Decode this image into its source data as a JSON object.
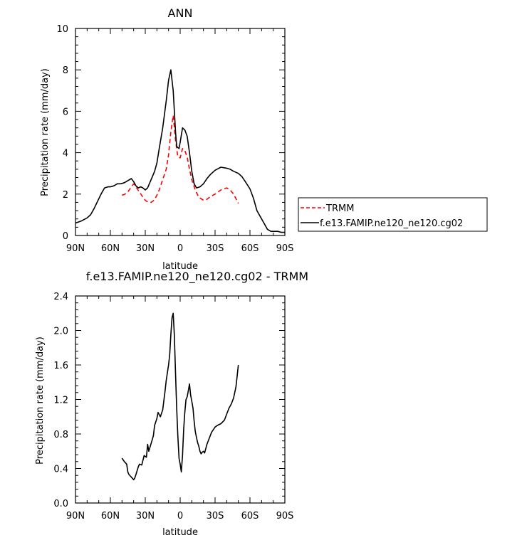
{
  "chart_data": [
    {
      "type": "line",
      "title": "ANN",
      "xlabel": "latitude",
      "ylabel": "Precipitation rate (mm/day)",
      "xlim": [
        90,
        -90
      ],
      "ylim": [
        0,
        10
      ],
      "x_ticks": [
        90,
        60,
        30,
        0,
        -30,
        -60,
        -90
      ],
      "x_tick_labels": [
        "90N",
        "60N",
        "30N",
        "0",
        "30S",
        "60S",
        "90S"
      ],
      "y_ticks": [
        0,
        2,
        4,
        6,
        8,
        10
      ],
      "y_tick_labels": [
        "0",
        "2",
        "4",
        "6",
        "8",
        "10"
      ],
      "grid": false,
      "legend_position": "right",
      "series": [
        {
          "name": "TRMM",
          "color": "#ff0000",
          "dash": "dashed",
          "x": [
            50,
            48,
            45,
            42,
            40,
            38,
            35,
            32,
            30,
            28,
            25,
            22,
            20,
            18,
            15,
            12,
            10,
            8,
            6,
            4,
            2,
            0,
            -2,
            -4,
            -6,
            -8,
            -10,
            -13,
            -16,
            -20,
            -23,
            -26,
            -30,
            -35,
            -40,
            -43,
            -46,
            -50
          ],
          "y": [
            1.95,
            1.98,
            2.1,
            2.35,
            2.5,
            2.35,
            2.1,
            1.85,
            1.7,
            1.62,
            1.6,
            1.72,
            1.95,
            2.2,
            2.7,
            3.2,
            3.9,
            5.0,
            5.8,
            4.6,
            3.8,
            3.75,
            4.2,
            4.1,
            3.8,
            3.2,
            2.7,
            2.2,
            1.85,
            1.7,
            1.75,
            1.88,
            2.0,
            2.2,
            2.3,
            2.2,
            2.0,
            1.55
          ]
        },
        {
          "name": "f.e13.FAMIP.ne120_ne120.cg02",
          "color": "#000000",
          "dash": "solid",
          "x": [
            90,
            85,
            80,
            77,
            74,
            71,
            68,
            65,
            62,
            60,
            57,
            54,
            51,
            48,
            45,
            42,
            40,
            38,
            36,
            34,
            32,
            30,
            28,
            25,
            22,
            20,
            18,
            15,
            12,
            10,
            8,
            6,
            4,
            3,
            1,
            0,
            -2,
            -4,
            -6,
            -8,
            -10,
            -12,
            -14,
            -17,
            -20,
            -23,
            -26,
            -30,
            -35,
            -40,
            -43,
            -46,
            -50,
            -53,
            -56,
            -60,
            -63,
            -66,
            -69,
            -72,
            -75,
            -78,
            -81,
            -84,
            -87,
            -90
          ],
          "y": [
            0.6,
            0.7,
            0.85,
            1.0,
            1.3,
            1.65,
            2.0,
            2.3,
            2.35,
            2.35,
            2.4,
            2.5,
            2.5,
            2.55,
            2.65,
            2.75,
            2.6,
            2.4,
            2.3,
            2.35,
            2.3,
            2.2,
            2.3,
            2.7,
            3.1,
            3.5,
            4.2,
            5.2,
            6.5,
            7.5,
            8.0,
            7.0,
            5.0,
            4.3,
            4.2,
            4.5,
            5.2,
            5.1,
            4.8,
            4.0,
            3.1,
            2.5,
            2.3,
            2.35,
            2.5,
            2.75,
            2.95,
            3.15,
            3.3,
            3.25,
            3.2,
            3.1,
            3.0,
            2.85,
            2.6,
            2.25,
            1.8,
            1.2,
            0.9,
            0.6,
            0.3,
            0.2,
            0.2,
            0.2,
            0.15,
            0.15
          ]
        }
      ]
    },
    {
      "type": "line",
      "title": "f.e13.FAMIP.ne120_ne120.cg02 - TRMM",
      "xlabel": "latitude",
      "ylabel": "Precipitation rate (mm/day)",
      "xlim": [
        90,
        -90
      ],
      "ylim": [
        0,
        2.4
      ],
      "x_ticks": [
        90,
        60,
        30,
        0,
        -30,
        -60,
        -90
      ],
      "x_tick_labels": [
        "90N",
        "60N",
        "30N",
        "0",
        "30S",
        "60S",
        "90S"
      ],
      "y_ticks": [
        0,
        0.4,
        0.8,
        1.2,
        1.6,
        2.0,
        2.4
      ],
      "y_tick_labels": [
        "0.0",
        "0.4",
        "0.8",
        "1.2",
        "1.6",
        "2.0",
        "2.4"
      ],
      "grid": false,
      "series": [
        {
          "color": "#000000",
          "dash": "solid",
          "x": [
            50,
            48,
            46,
            45,
            44,
            42,
            40,
            39,
            38,
            36,
            35,
            33,
            31,
            29,
            28,
            27,
            25,
            23,
            22,
            20,
            19,
            17,
            15,
            13,
            12,
            10,
            9,
            8,
            7,
            6,
            5,
            4,
            3,
            2,
            1,
            0,
            -1,
            -2,
            -3,
            -4,
            -5,
            -6,
            -7,
            -8,
            -9,
            -10,
            -11,
            -12,
            -13,
            -14,
            -15,
            -16,
            -17,
            -18,
            -19,
            -20,
            -21,
            -23,
            -25,
            -27,
            -30,
            -32,
            -35,
            -38,
            -40,
            -42,
            -44,
            -46,
            -48,
            -50
          ],
          "y": [
            0.52,
            0.48,
            0.45,
            0.36,
            0.33,
            0.3,
            0.27,
            0.29,
            0.33,
            0.42,
            0.45,
            0.44,
            0.55,
            0.53,
            0.68,
            0.6,
            0.69,
            0.78,
            0.9,
            0.98,
            1.05,
            1.0,
            1.08,
            1.3,
            1.42,
            1.6,
            1.72,
            1.95,
            2.15,
            2.2,
            1.95,
            1.5,
            1.1,
            0.78,
            0.52,
            0.45,
            0.36,
            0.55,
            0.85,
            1.05,
            1.2,
            1.23,
            1.3,
            1.38,
            1.25,
            1.18,
            1.1,
            0.95,
            0.83,
            0.76,
            0.7,
            0.66,
            0.6,
            0.57,
            0.59,
            0.6,
            0.58,
            0.68,
            0.75,
            0.82,
            0.88,
            0.9,
            0.92,
            0.96,
            1.03,
            1.1,
            1.15,
            1.22,
            1.35,
            1.6
          ]
        }
      ]
    }
  ]
}
